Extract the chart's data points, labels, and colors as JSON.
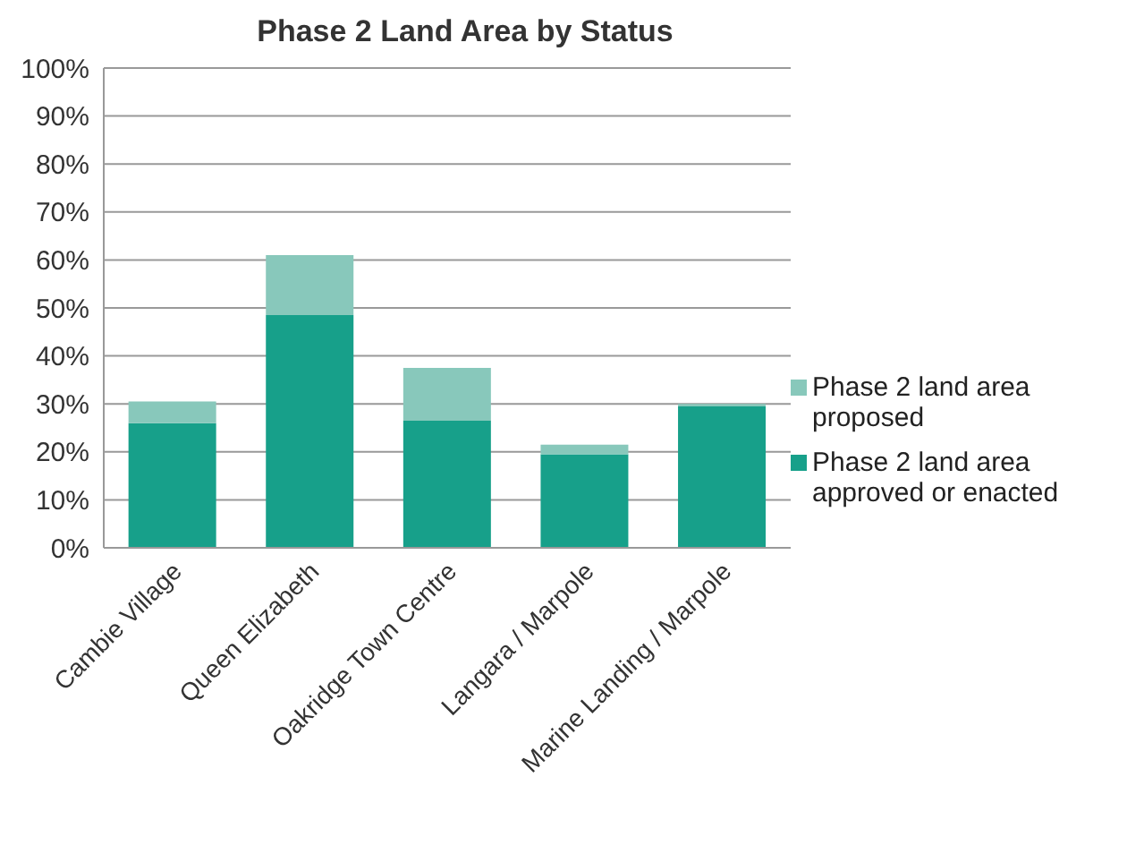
{
  "chart_data": {
    "type": "bar",
    "title": "Phase 2 Land Area by Status",
    "categories": [
      "Cambie Village",
      "Queen Elizabeth",
      "Oakridge Town Centre",
      "Langara / Marpole",
      "Marine Landing / Marpole"
    ],
    "stacked": true,
    "series": [
      {
        "name": "Phase 2 land area approved or enacted",
        "color": "#17a08a",
        "values": [
          26,
          48.5,
          26.5,
          19.5,
          29.5
        ]
      },
      {
        "name": "Phase 2 land area proposed",
        "color": "#88c8bb",
        "values": [
          4.5,
          12.5,
          11,
          2,
          0.5
        ]
      }
    ],
    "ylim": [
      0,
      100
    ],
    "yticks": [
      {
        "value": 0,
        "label": "0%"
      },
      {
        "value": 10,
        "label": "10%"
      },
      {
        "value": 20,
        "label": "20%"
      },
      {
        "value": 30,
        "label": "30%"
      },
      {
        "value": 40,
        "label": "40%"
      },
      {
        "value": 50,
        "label": "50%"
      },
      {
        "value": 60,
        "label": "60%"
      },
      {
        "value": 70,
        "label": "70%"
      },
      {
        "value": 80,
        "label": "80%"
      },
      {
        "value": 90,
        "label": "90%"
      },
      {
        "value": 100,
        "label": "100%"
      }
    ],
    "grid": "y",
    "legend": "right"
  }
}
